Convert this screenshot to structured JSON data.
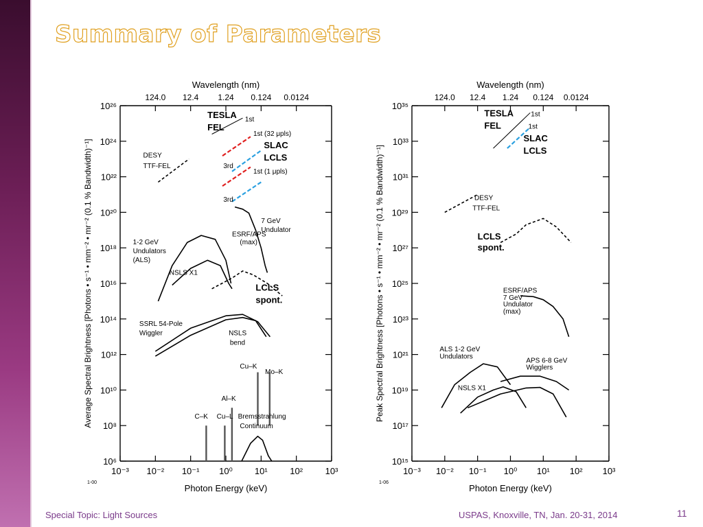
{
  "slide": {
    "title": "Summary of Parameters",
    "footer_left": "Special Topic: Light Sources",
    "footer_right": "USPAS, Knoxville, TN, Jan. 20-31, 2014",
    "page_number": "11"
  },
  "colors": {
    "sidebar": "#6b1e55",
    "title_outline": "#e0a020",
    "footer_text": "#7a3a8a",
    "red_dash": "#e02020",
    "blue_dash": "#2aa0e0"
  },
  "chart_data": [
    {
      "type": "line",
      "log_x": true,
      "log_y": true,
      "xlabel": "Photon Energy (keV)",
      "ylabel": "Average Spectral Brightness  [Photons • s⁻¹ • mm⁻² • mr⁻² (0.1 % Bandwidth)⁻¹]",
      "top_axis_label": "Wavelength (nm)",
      "top_tick_labels": [
        "124.0",
        "12.4",
        "1.24",
        "0.124",
        "0.0124"
      ],
      "top_tick_positions_kev": [
        0.01,
        0.1,
        1,
        10,
        100
      ],
      "x_tick_labels": [
        "10⁻³",
        "10⁻²",
        "10⁻¹",
        "10⁰",
        "10¹",
        "10²",
        "10³"
      ],
      "x_tick_values": [
        0.001,
        0.01,
        0.1,
        1,
        10,
        100,
        1000
      ],
      "xlim": [
        0.001,
        1000
      ],
      "y_tick_labels": [
        "10⁶",
        "10⁸",
        "10¹⁰",
        "10¹²",
        "10¹⁴",
        "10¹⁶",
        "10¹⁸",
        "10²⁰",
        "10²²",
        "10²⁴",
        "10²⁶"
      ],
      "y_tick_values": [
        1000000.0,
        100000000.0,
        10000000000.0,
        1000000000000.0,
        100000000000000.0,
        1e+16,
        1e+18,
        1e+20,
        1e+22,
        1e+24,
        1e+26
      ],
      "ylim": [
        1000000.0,
        1e+26
      ],
      "corner_note": "1-00",
      "series": [
        {
          "style": "thin",
          "points": [
            [
              0.4,
              2.5e+24
            ],
            [
              3,
              2e+25
            ]
          ]
        },
        {
          "style": "red-dash",
          "points": [
            [
              0.8,
              1.5e+23
            ],
            [
              5,
              1.8e+24
            ]
          ]
        },
        {
          "style": "blue-dash",
          "points": [
            [
              1.5,
              2e+22
            ],
            [
              10,
              3e+23
            ]
          ]
        },
        {
          "style": "red-dash",
          "points": [
            [
              0.8,
              3e+21
            ],
            [
              5,
              3.5e+22
            ]
          ]
        },
        {
          "style": "blue-dash",
          "points": [
            [
              1.5,
              4e+20
            ],
            [
              10,
              5e+21
            ]
          ]
        },
        {
          "style": "dash",
          "points": [
            [
              0.012,
              5e+21
            ],
            [
              0.09,
              1e+23
            ]
          ]
        },
        {
          "style": "solid",
          "points": [
            [
              1.8,
              2e+20
            ],
            [
              3,
              1.5e+20
            ],
            [
              4.5,
              9e+19
            ],
            [
              7,
              1e+19
            ],
            [
              10,
              1e+18
            ],
            [
              13,
              1e+17
            ],
            [
              15,
              4e+16
            ]
          ]
        },
        {
          "style": "solid",
          "points": [
            [
              0.012,
              1000000000000000.0
            ],
            [
              0.03,
              1e+17
            ],
            [
              0.08,
              2e+18
            ],
            [
              0.2,
              5e+18
            ],
            [
              0.5,
              3e+18
            ],
            [
              1,
              2e+17
            ],
            [
              1.4,
              1e+16
            ]
          ]
        },
        {
          "style": "solid",
          "points": [
            [
              0.03,
              8000000000000000.0
            ],
            [
              0.1,
              7e+16
            ],
            [
              0.3,
              2e+17
            ],
            [
              0.7,
              1e+17
            ],
            [
              1.2,
              1e+16
            ],
            [
              1.5,
              5000000000000000.0
            ]
          ]
        },
        {
          "style": "dash",
          "points": [
            [
              0.4,
              5000000000000000.0
            ],
            [
              1.5,
              2e+16
            ],
            [
              3,
              5e+16
            ],
            [
              6,
              3e+16
            ],
            [
              15,
              1e+16
            ],
            [
              40,
              2000000000000000.0
            ]
          ]
        },
        {
          "style": "solid",
          "points": [
            [
              0.01,
              1500000000000.0
            ],
            [
              0.1,
              30000000000000.0
            ],
            [
              1,
              150000000000000.0
            ],
            [
              3,
              180000000000000.0
            ],
            [
              8,
              70000000000000.0
            ],
            [
              18,
              10000000000000.0
            ]
          ]
        },
        {
          "style": "solid",
          "points": [
            [
              0.01,
              800000000000.0
            ],
            [
              0.1,
              12000000000000.0
            ],
            [
              1,
              90000000000000.0
            ],
            [
              3,
              120000000000000.0
            ],
            [
              7,
              80000000000000.0
            ],
            [
              14,
              10000000000000.0
            ]
          ]
        },
        {
          "style": "solid",
          "points": [
            [
              2.8,
              1000000.0
            ],
            [
              5,
              10000000.0
            ],
            [
              8,
              25000000.0
            ],
            [
              11,
              15000000.0
            ],
            [
              16,
              2000000.0
            ],
            [
              20,
              1000000.0
            ]
          ]
        },
        {
          "style": "bar",
          "points": [
            [
              0.277,
              1000000.0
            ],
            [
              0.277,
              100000000.0
            ]
          ]
        },
        {
          "style": "bar",
          "points": [
            [
              0.93,
              1000000.0
            ],
            [
              0.93,
              100000000.0
            ]
          ]
        },
        {
          "style": "bar",
          "points": [
            [
              1.49,
              1000000.0
            ],
            [
              1.49,
              1000000000.0
            ]
          ]
        },
        {
          "style": "bar",
          "points": [
            [
              8.05,
              100000000.0
            ],
            [
              8.05,
              100000000000.0
            ]
          ]
        },
        {
          "style": "bar",
          "points": [
            [
              17.5,
              100000000.0
            ],
            [
              17.5,
              100000000000.0
            ]
          ]
        }
      ],
      "annotations": [
        {
          "text": "1st",
          "x": 3.5,
          "y": 1.3e+25,
          "bold": false
        },
        {
          "text": "TESLA",
          "x": 0.3,
          "y": 2e+25,
          "bold": true
        },
        {
          "text": "FEL",
          "x": 0.3,
          "y": 4e+24,
          "bold": true
        },
        {
          "text": "1st (32 μpls)",
          "x": 6,
          "y": 2e+24,
          "bold": false
        },
        {
          "text": "SLAC",
          "x": 12,
          "y": 4e+23,
          "bold": true
        },
        {
          "text": "LCLS",
          "x": 12,
          "y": 8e+22,
          "bold": true
        },
        {
          "text": "3rd",
          "x": 0.85,
          "y": 3e+22,
          "bold": false
        },
        {
          "text": "1st (1 μpls)",
          "x": 6,
          "y": 1.5e+22,
          "bold": false
        },
        {
          "text": "3rd",
          "x": 0.85,
          "y": 4e+20,
          "bold": false
        },
        {
          "text": "DESY",
          "x": 0.0045,
          "y": 1.2e+23,
          "bold": false
        },
        {
          "text": "TTF-FEL",
          "x": 0.0045,
          "y": 3e+22,
          "bold": false
        },
        {
          "text": "7 GeV",
          "x": 10,
          "y": 2.5e+19,
          "bold": false
        },
        {
          "text": "Undulator",
          "x": 10,
          "y": 8e+18,
          "bold": false
        },
        {
          "text": "ESRF/APS",
          "x": 1.5,
          "y": 4.5e+18,
          "bold": false
        },
        {
          "text": "(max)",
          "x": 2.5,
          "y": 1.6e+18,
          "bold": false
        },
        {
          "text": "1-2 GeV",
          "x": 0.0023,
          "y": 1.6e+18,
          "bold": false
        },
        {
          "text": "Undulators",
          "x": 0.0023,
          "y": 5e+17,
          "bold": false
        },
        {
          "text": "(ALS)",
          "x": 0.0023,
          "y": 1.6e+17,
          "bold": false
        },
        {
          "text": "NSLS X1",
          "x": 0.025,
          "y": 3e+16,
          "bold": false
        },
        {
          "text": "LCLS",
          "x": 7,
          "y": 4000000000000000.0,
          "bold": true
        },
        {
          "text": "spont.",
          "x": 7,
          "y": 800000000000000.0,
          "bold": true
        },
        {
          "text": "SSRL 54-Pole",
          "x": 0.0035,
          "y": 40000000000000.0,
          "bold": false
        },
        {
          "text": "Wiggler",
          "x": 0.0035,
          "y": 12000000000000.0,
          "bold": false
        },
        {
          "text": "NSLS",
          "x": 1.2,
          "y": 12000000000000.0,
          "bold": false
        },
        {
          "text": "bend",
          "x": 1.3,
          "y": 3500000000000.0,
          "bold": false
        },
        {
          "text": "Cu–K",
          "x": 2.5,
          "y": 160000000000.0,
          "bold": false
        },
        {
          "text": "Mo–K",
          "x": 13,
          "y": 80000000000.0,
          "bold": false
        },
        {
          "text": "Al–K",
          "x": 0.75,
          "y": 2500000000.0,
          "bold": false
        },
        {
          "text": "C–K",
          "x": 0.13,
          "y": 250000000.0,
          "bold": false
        },
        {
          "text": "Cu–L",
          "x": 0.55,
          "y": 250000000.0,
          "bold": false
        },
        {
          "text": "Bremsstrahlung",
          "x": 2.2,
          "y": 250000000.0,
          "bold": false
        },
        {
          "text": "Continuum",
          "x": 2.5,
          "y": 70000000.0,
          "bold": false
        }
      ]
    },
    {
      "type": "line",
      "log_x": true,
      "log_y": true,
      "xlabel": "Photon Energy (keV)",
      "ylabel": "Peak Spectral Brightness  [Photons • s⁻¹ • mm⁻² • mr⁻² (0.1 % Bandwidth)⁻¹]",
      "top_axis_label": "Wavelength (nm)",
      "top_tick_labels": [
        "124.0",
        "12.4",
        "1.24",
        "0.124",
        "0.0124"
      ],
      "top_tick_positions_kev": [
        0.01,
        0.1,
        1,
        10,
        100
      ],
      "x_tick_labels": [
        "10⁻³",
        "10⁻²",
        "10⁻¹",
        "10⁰",
        "10¹",
        "10²",
        "10³"
      ],
      "x_tick_values": [
        0.001,
        0.01,
        0.1,
        1,
        10,
        100,
        1000
      ],
      "xlim": [
        0.001,
        1000
      ],
      "y_tick_labels": [
        "10¹⁵",
        "10¹⁷",
        "10¹⁹",
        "10²¹",
        "10²³",
        "10²⁵",
        "10²⁷",
        "10²⁹",
        "10³¹",
        "10³³",
        "10³⁵"
      ],
      "y_tick_values": [
        1000000000000000.0,
        1e+17,
        1e+19,
        1e+21,
        1e+23,
        1e+25,
        1e+27,
        1e+29,
        1e+31,
        1e+33,
        1e+35
      ],
      "ylim": [
        1000000000000000.0,
        1e+35
      ],
      "corner_note": "1-06",
      "series": [
        {
          "style": "thin",
          "points": [
            [
              0.3,
              4e+32
            ],
            [
              4,
              4e+34
            ]
          ]
        },
        {
          "style": "blue-dash",
          "points": [
            [
              0.8,
              4e+32
            ],
            [
              4,
              6e+33
            ]
          ]
        },
        {
          "style": "dash",
          "points": [
            [
              0.01,
              1e+29
            ],
            [
              0.1,
              1e+30
            ]
          ]
        },
        {
          "style": "dash",
          "points": [
            [
              0.5,
              2e+27
            ],
            [
              1.5,
              6e+27
            ],
            [
              3,
              2e+28
            ],
            [
              10,
              4.5e+28
            ],
            [
              25,
              1.5e+28
            ],
            [
              70,
              2e+27
            ]
          ]
        },
        {
          "style": "solid",
          "points": [
            [
              2,
              2e+24
            ],
            [
              5,
              1.8e+24
            ],
            [
              10,
              1.2e+24
            ],
            [
              20,
              5e+23
            ],
            [
              40,
              1e+23
            ],
            [
              60,
              1e+22
            ]
          ]
        },
        {
          "style": "solid",
          "points": [
            [
              0.008,
              1e+18
            ],
            [
              0.02,
              2e+19
            ],
            [
              0.06,
              1e+20
            ],
            [
              0.15,
              3e+20
            ],
            [
              0.4,
              2e+20
            ],
            [
              1,
              2e+19
            ]
          ]
        },
        {
          "style": "solid",
          "points": [
            [
              0.03,
              5e+17
            ],
            [
              0.1,
              4e+18
            ],
            [
              0.3,
              1e+19
            ],
            [
              0.6,
              1.5e+19
            ],
            [
              1.5,
              8e+18
            ],
            [
              3,
              1e+18
            ]
          ]
        },
        {
          "style": "solid",
          "points": [
            [
              0.05,
              1e+18
            ],
            [
              0.5,
              6e+18
            ],
            [
              3,
              1.3e+19
            ],
            [
              8,
              1.4e+19
            ],
            [
              20,
              6e+18
            ],
            [
              50,
              3e+17
            ]
          ]
        },
        {
          "style": "solid",
          "points": [
            [
              0.5,
              3e+19
            ],
            [
              2,
              6e+19
            ],
            [
              8,
              6e+19
            ],
            [
              25,
              3e+19
            ],
            [
              60,
              1e+19
            ]
          ]
        }
      ],
      "annotations": [
        {
          "text": "1st",
          "x": 4.2,
          "y": 2.5e+34,
          "bold": false
        },
        {
          "text": "TESLA",
          "x": 0.16,
          "y": 2.5e+34,
          "bold": true
        },
        {
          "text": "FEL",
          "x": 0.16,
          "y": 5e+33,
          "bold": true
        },
        {
          "text": "1st",
          "x": 3.5,
          "y": 5e+33,
          "bold": false
        },
        {
          "text": "SLAC",
          "x": 2.5,
          "y": 1e+33,
          "bold": true
        },
        {
          "text": "LCLS",
          "x": 2.5,
          "y": 2e+32,
          "bold": true
        },
        {
          "text": "DESY",
          "x": 0.08,
          "y": 5e+29,
          "bold": false
        },
        {
          "text": "TTF-FEL",
          "x": 0.07,
          "y": 1.3e+29,
          "bold": false
        },
        {
          "text": "LCLS",
          "x": 0.1,
          "y": 3e+27,
          "bold": true
        },
        {
          "text": "spont.",
          "x": 0.1,
          "y": 7e+26,
          "bold": true
        },
        {
          "text": "ESRF/APS",
          "x": 0.6,
          "y": 3e+24,
          "bold": false
        },
        {
          "text": "7 GeV",
          "x": 0.6,
          "y": 1.2e+24,
          "bold": false
        },
        {
          "text": "Undulator",
          "x": 0.6,
          "y": 5e+23,
          "bold": false
        },
        {
          "text": "(max)",
          "x": 0.6,
          "y": 2e+23,
          "bold": false
        },
        {
          "text": "ALS 1-2 GeV",
          "x": 0.007,
          "y": 1.5e+21,
          "bold": false
        },
        {
          "text": "Undulators",
          "x": 0.007,
          "y": 6e+20,
          "bold": false
        },
        {
          "text": "APS 6-8 GeV",
          "x": 3,
          "y": 3.5e+20,
          "bold": false
        },
        {
          "text": "Wigglers",
          "x": 3,
          "y": 1.4e+20,
          "bold": false
        },
        {
          "text": "NSLS X1",
          "x": 0.025,
          "y": 1e+19,
          "bold": false
        }
      ]
    }
  ]
}
